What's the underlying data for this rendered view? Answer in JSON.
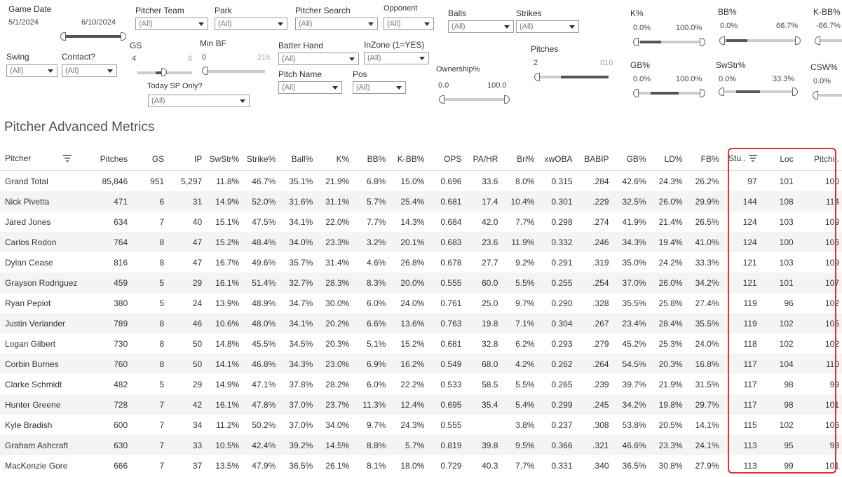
{
  "filters": {
    "game_date": {
      "label": "Game Date",
      "min": "5/1/2024",
      "max": "6/10/2024"
    },
    "pitcher_team": {
      "label": "Pitcher Team",
      "value": "(All)"
    },
    "park": {
      "label": "Park",
      "value": "(All)"
    },
    "pitcher_search": {
      "label": "Pitcher Search",
      "value": "(All)"
    },
    "opponent": {
      "label": "Opponent",
      "value": "(All)"
    },
    "balls": {
      "label": "Balls",
      "value": "(All)"
    },
    "strikes": {
      "label": "Strikes",
      "value": "(All)"
    },
    "k_pct": {
      "label": "K%",
      "min": "0.0%",
      "max": "100.0%"
    },
    "bb_pct": {
      "label": "BB%",
      "min": "0.0%",
      "max": "66.7%"
    },
    "k_bb_pct": {
      "label": "K-BB%",
      "min": "-66.7%"
    },
    "swing": {
      "label": "Swing",
      "value": "(All)"
    },
    "contact": {
      "label": "Contact?",
      "value": "(All)"
    },
    "gs": {
      "label": "GS",
      "min": "4",
      "max": "8"
    },
    "min_bf": {
      "label": "Min BF",
      "min": "0",
      "max": "216"
    },
    "batter_hand": {
      "label": "Batter Hand",
      "value": "(All)"
    },
    "inzone": {
      "label": "InZone (1=YES)",
      "value": "(All)"
    },
    "pitches": {
      "label": "Pitches",
      "min": "2",
      "max": "816"
    },
    "gb_pct": {
      "label": "GB%",
      "min": "0.0%",
      "max": "100.0%"
    },
    "swstr_pct": {
      "label": "SwStr%",
      "min": "0.0%",
      "max": "33.3%"
    },
    "csw_pct": {
      "label": "CSW%",
      "min": "0.0%"
    },
    "pitch_name": {
      "label": "Pitch Name",
      "value": "(All)"
    },
    "pos": {
      "label": "Pos",
      "value": "(All)"
    },
    "ownership": {
      "label": "Ownership%",
      "min": "0.0",
      "max": "100.0"
    },
    "today_sp": {
      "label": "Today SP Only?",
      "value": "(All)"
    }
  },
  "title": "Pitcher Advanced Metrics",
  "table": {
    "columns": [
      "Pitcher",
      "Pitches",
      "GS",
      "IP",
      "SwStr%",
      "Strike%",
      "Ball%",
      "K%",
      "BB%",
      "K-BB%",
      "OPS",
      "PA/HR",
      "Brl%",
      "xwOBA",
      "BABIP",
      "GB%",
      "LD%",
      "FB%",
      "Stu..",
      "Loc",
      "Pitchi.."
    ],
    "grand_total": [
      "Grand Total",
      "85,846",
      "951",
      "5,297",
      "11.8%",
      "46.7%",
      "35.1%",
      "21.9%",
      "6.8%",
      "15.0%",
      "0.696",
      "33.6",
      "8.0%",
      "0.315",
      ".284",
      "42.6%",
      "24.3%",
      "26.2%",
      "97",
      "101",
      "100"
    ],
    "rows": [
      [
        "Nick Pivetta",
        "471",
        "6",
        "31",
        "14.9%",
        "52.0%",
        "31.6%",
        "31.1%",
        "5.7%",
        "25.4%",
        "0.681",
        "17.4",
        "10.4%",
        "0.301",
        ".229",
        "32.5%",
        "26.0%",
        "29.9%",
        "144",
        "108",
        "114"
      ],
      [
        "Jared Jones",
        "634",
        "7",
        "40",
        "15.1%",
        "47.5%",
        "34.1%",
        "22.0%",
        "7.7%",
        "14.3%",
        "0.684",
        "42.0",
        "7.7%",
        "0.298",
        ".274",
        "41.9%",
        "21.4%",
        "26.5%",
        "124",
        "103",
        "109"
      ],
      [
        "Carlos Rodon",
        "764",
        "8",
        "47",
        "15.2%",
        "48.4%",
        "34.0%",
        "23.3%",
        "3.2%",
        "20.1%",
        "0.683",
        "23.6",
        "11.9%",
        "0.332",
        ".246",
        "34.3%",
        "19.4%",
        "41.0%",
        "124",
        "100",
        "106"
      ],
      [
        "Dylan Cease",
        "816",
        "8",
        "47",
        "16.7%",
        "49.6%",
        "35.7%",
        "31.4%",
        "4.6%",
        "26.8%",
        "0.678",
        "27.7",
        "9.2%",
        "0.291",
        ".319",
        "35.0%",
        "24.2%",
        "33.3%",
        "121",
        "103",
        "109"
      ],
      [
        "Grayson Rodriguez",
        "459",
        "5",
        "29",
        "16.1%",
        "51.4%",
        "32.7%",
        "28.3%",
        "8.3%",
        "20.0%",
        "0.555",
        "60.0",
        "5.5%",
        "0.255",
        ".254",
        "37.0%",
        "26.0%",
        "34.2%",
        "121",
        "101",
        "107"
      ],
      [
        "Ryan Pepiot",
        "380",
        "5",
        "24",
        "13.9%",
        "48.9%",
        "34.7%",
        "30.0%",
        "6.0%",
        "24.0%",
        "0.761",
        "25.0",
        "9.7%",
        "0.290",
        ".328",
        "35.5%",
        "25.8%",
        "27.4%",
        "119",
        "96",
        "102"
      ],
      [
        "Justin Verlander",
        "789",
        "8",
        "46",
        "10.6%",
        "48.0%",
        "34.1%",
        "20.2%",
        "6.6%",
        "13.6%",
        "0.763",
        "19.8",
        "7.1%",
        "0.304",
        ".267",
        "23.4%",
        "28.4%",
        "35.5%",
        "119",
        "102",
        "105"
      ],
      [
        "Logan Gilbert",
        "730",
        "8",
        "50",
        "14.8%",
        "45.5%",
        "34.5%",
        "20.3%",
        "5.1%",
        "15.2%",
        "0.681",
        "32.8",
        "6.2%",
        "0.293",
        ".279",
        "45.2%",
        "25.3%",
        "24.0%",
        "118",
        "102",
        "102"
      ],
      [
        "Corbin Burnes",
        "760",
        "8",
        "50",
        "14.1%",
        "46.8%",
        "34.3%",
        "23.0%",
        "6.9%",
        "16.2%",
        "0.549",
        "68.0",
        "4.2%",
        "0.262",
        ".264",
        "54.5%",
        "20.3%",
        "16.8%",
        "117",
        "104",
        "110"
      ],
      [
        "Clarke Schmidt",
        "482",
        "5",
        "29",
        "14.9%",
        "47.1%",
        "37.8%",
        "28.2%",
        "6.0%",
        "22.2%",
        "0.533",
        "58.5",
        "5.5%",
        "0.265",
        ".239",
        "39.7%",
        "21.9%",
        "31.5%",
        "117",
        "98",
        "99"
      ],
      [
        "Hunter Greene",
        "728",
        "7",
        "42",
        "16.1%",
        "47.8%",
        "37.0%",
        "23.7%",
        "11.3%",
        "12.4%",
        "0.695",
        "35.4",
        "5.4%",
        "0.299",
        ".245",
        "34.2%",
        "19.8%",
        "29.7%",
        "117",
        "98",
        "101"
      ],
      [
        "Kyle Bradish",
        "600",
        "7",
        "34",
        "11.2%",
        "50.2%",
        "37.0%",
        "34.0%",
        "9.7%",
        "24.3%",
        "0.555",
        "",
        "3.8%",
        "0.237",
        ".308",
        "53.8%",
        "20.5%",
        "14.1%",
        "115",
        "102",
        "106"
      ],
      [
        "Graham Ashcraft",
        "630",
        "7",
        "33",
        "10.5%",
        "42.4%",
        "39.2%",
        "14.5%",
        "8.8%",
        "5.7%",
        "0.819",
        "39.8",
        "9.5%",
        "0.366",
        ".321",
        "46.6%",
        "23.3%",
        "24.1%",
        "113",
        "95",
        "93"
      ],
      [
        "MacKenzie Gore",
        "666",
        "7",
        "37",
        "13.5%",
        "47.9%",
        "36.5%",
        "26.1%",
        "8.1%",
        "18.0%",
        "0.729",
        "40.3",
        "7.7%",
        "0.331",
        ".340",
        "36.5%",
        "30.8%",
        "27.9%",
        "113",
        "99",
        "101"
      ]
    ]
  }
}
